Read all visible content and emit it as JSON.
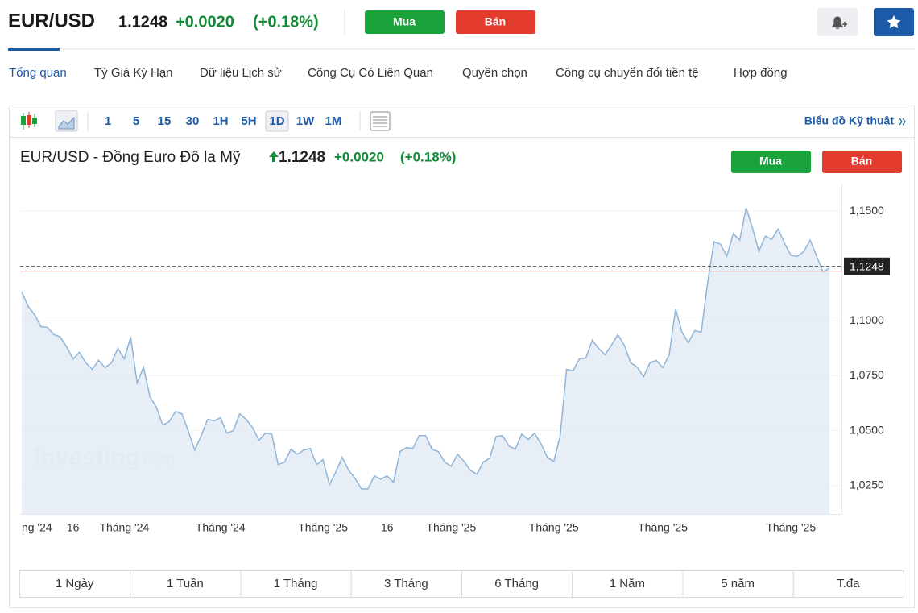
{
  "header": {
    "symbol": "EUR/USD",
    "price": "1.1248",
    "change": "+0.0020",
    "change_pct": "(+0.18%)",
    "buy": "Mua",
    "sell": "Bán"
  },
  "tabs": [
    "Tổng quan",
    "Tỷ Giá Kỳ Hạn",
    "Dữ liệu Lịch sử",
    "Công Cụ Có Liên Quan",
    "Quyền chọn",
    "Công cụ chuyển đổi tiền tệ",
    "Hợp đồng"
  ],
  "toolbar": {
    "intervals": [
      "1",
      "5",
      "15",
      "30",
      "1H",
      "5H",
      "1D",
      "1W",
      "1M"
    ],
    "technical_link": "Biểu đồ Kỹ thuật"
  },
  "chart_data": {
    "type": "line",
    "title": "EUR/USD - Đồng Euro Đô la Mỹ",
    "price": "1.1248",
    "change": "+0.0020",
    "change_pct": "(+0.18%)",
    "buy": "Mua",
    "sell": "Bán",
    "watermark": "Investing",
    "watermark_suffix": ".com",
    "color": "#8fb5d9",
    "area_color": "#e4ecf5",
    "categories": [
      "ng '24",
      null,
      null,
      null,
      null,
      null,
      null,
      null,
      "16",
      null,
      null,
      null,
      null,
      null,
      null,
      null,
      "Tháng '24",
      null,
      null,
      null,
      null,
      null,
      null,
      null,
      null,
      null,
      null,
      null,
      null,
      null,
      null,
      "Tháng '24",
      null,
      null,
      null,
      null,
      null,
      null,
      null,
      null,
      null,
      null,
      null,
      null,
      null,
      null,
      null,
      "Tháng '25",
      null,
      null,
      null,
      null,
      null,
      null,
      null,
      null,
      null,
      "16",
      null,
      null,
      null,
      null,
      null,
      null,
      null,
      null,
      null,
      "Tháng '25",
      null,
      null,
      null,
      null,
      null,
      null,
      null,
      null,
      null,
      null,
      null,
      null,
      null,
      null,
      null,
      "Tháng '25",
      null,
      null,
      null,
      null,
      null,
      null,
      null,
      null,
      null,
      null,
      null,
      null,
      null,
      null,
      null,
      null,
      "Tháng '25",
      null,
      null,
      null,
      null,
      null,
      null,
      null,
      null,
      null,
      null,
      null,
      null,
      null,
      null,
      null,
      null,
      null,
      null,
      null,
      "Tháng '25",
      null,
      null,
      null,
      null,
      null,
      null
    ],
    "values": [
      1.1132,
      1.1066,
      1.1029,
      1.0974,
      1.0971,
      1.0938,
      1.0927,
      1.0882,
      1.0827,
      1.0857,
      1.0809,
      1.078,
      1.082,
      1.0787,
      1.0809,
      1.0875,
      1.0827,
      1.0927,
      1.0717,
      1.079,
      1.0654,
      1.0607,
      1.0526,
      1.0541,
      1.0588,
      1.0577,
      1.0496,
      1.0412,
      1.0478,
      1.0552,
      1.0545,
      1.0559,
      1.0489,
      1.05,
      1.0577,
      1.0552,
      1.0515,
      1.0456,
      1.0489,
      1.0485,
      1.0346,
      1.0357,
      1.0416,
      1.0393,
      1.0412,
      1.0419,
      1.0346,
      1.0368,
      1.0254,
      1.0313,
      1.0379,
      1.032,
      1.0283,
      1.0235,
      1.0235,
      1.0294,
      1.0279,
      1.0294,
      1.0265,
      1.0405,
      1.0423,
      1.0419,
      1.0478,
      1.0478,
      1.0416,
      1.0405,
      1.0357,
      1.0338,
      1.0393,
      1.036,
      1.032,
      1.0302,
      1.0357,
      1.0375,
      1.0474,
      1.0478,
      1.043,
      1.0416,
      1.0485,
      1.046,
      1.0489,
      1.0441,
      1.0379,
      1.036,
      1.0478,
      1.078,
      1.0772,
      1.0827,
      1.0831,
      1.0912,
      1.0875,
      1.0846,
      1.089,
      1.0938,
      1.089,
      1.0809,
      1.079,
      1.0746,
      1.0809,
      1.082,
      1.0787,
      1.0846,
      1.1055,
      1.0949,
      1.0901,
      1.0956,
      1.0949,
      1.1176,
      1.136,
      1.1349,
      1.1294,
      1.1397,
      1.1368,
      1.1515,
      1.1423,
      1.1316,
      1.1386,
      1.1371,
      1.1419,
      1.1353,
      1.1298,
      1.1294,
      1.1316,
      1.1368,
      1.1294,
      1.1224,
      1.1239
    ],
    "ylim": [
      1.0121,
      1.1625
    ],
    "yticks": [
      {
        "value": 1.025,
        "label": "1,0250"
      },
      {
        "value": 1.05,
        "label": "1,0500"
      },
      {
        "value": 1.075,
        "label": "1,0750"
      },
      {
        "value": 1.1,
        "label": "1,1000"
      },
      {
        "value": 1.15,
        "label": "1,1500"
      }
    ],
    "last_price": {
      "value": 1.1248,
      "label": "1,1248"
    },
    "grid": true,
    "ranges": [
      "1 Ngày",
      "1 Tuần",
      "1 Tháng",
      "3 Tháng",
      "6 Tháng",
      "1 Năm",
      "5 năm",
      "T.đa"
    ]
  }
}
